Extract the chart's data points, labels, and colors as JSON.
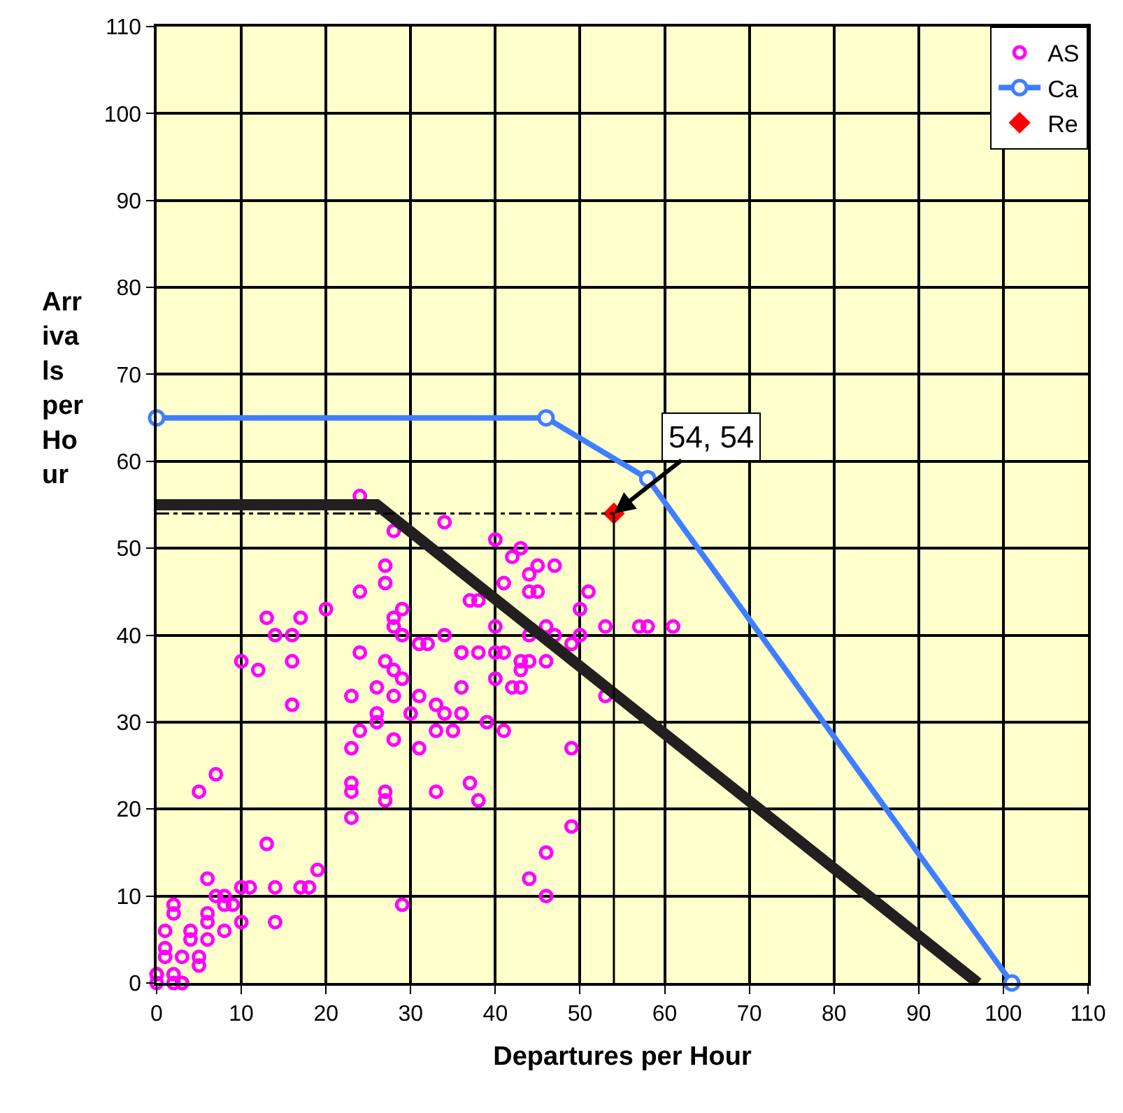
{
  "chart_data": {
    "type": "scatter",
    "xlabel": "Departures per Hour",
    "ylabel": "Arr\niva\nls\nper\nHo\nur",
    "xlim": [
      0,
      110
    ],
    "xticks": [
      0,
      10,
      20,
      30,
      40,
      50,
      60,
      70,
      80,
      90,
      100,
      110
    ],
    "ylim": [
      0,
      110
    ],
    "yticks": [
      0,
      10,
      20,
      30,
      40,
      50,
      60,
      70,
      80,
      90,
      100,
      110
    ],
    "grid": true,
    "legend": "top right",
    "series": [
      {
        "name": "AS",
        "marker": "circle",
        "color": "#ff00ff",
        "x": [
          0,
          0,
          0,
          1,
          1,
          1,
          2,
          2,
          2,
          3,
          3,
          4,
          4,
          5,
          5,
          6,
          6,
          6,
          7,
          8,
          8,
          8,
          9,
          10,
          10,
          11,
          14,
          14,
          17,
          18,
          19,
          13,
          6,
          5,
          7,
          23,
          27,
          27,
          23,
          29,
          24,
          34,
          28,
          27,
          27,
          24,
          20,
          13,
          17,
          14,
          16,
          28,
          29,
          28,
          29,
          31,
          32,
          34,
          36,
          10,
          12,
          16,
          24,
          27,
          28,
          29,
          26,
          23,
          28,
          31,
          16,
          36,
          26,
          30,
          33,
          34,
          36,
          24,
          26,
          33,
          35,
          23,
          28,
          31,
          23,
          33,
          37,
          40,
          43,
          42,
          45,
          47,
          44,
          41,
          44,
          45,
          51,
          37,
          38,
          50,
          40,
          46,
          47,
          53,
          57,
          58,
          61,
          44,
          50,
          49,
          36,
          38,
          40,
          41,
          43,
          44,
          43,
          46,
          40,
          42,
          43,
          53,
          39,
          41,
          49,
          38,
          49,
          46,
          44,
          46,
          2,
          3
        ],
        "values": [
          0,
          1,
          1,
          4,
          6,
          3,
          1,
          9,
          8,
          3,
          0,
          6,
          5,
          3,
          2,
          8,
          7,
          5,
          10,
          10,
          9,
          6,
          9,
          7,
          11,
          11,
          11,
          7,
          11,
          11,
          13,
          16,
          12,
          22,
          24,
          22,
          22,
          21,
          19,
          9,
          56,
          53,
          52,
          48,
          46,
          45,
          43,
          42,
          42,
          40,
          40,
          42,
          43,
          41,
          40,
          39,
          39,
          40,
          38,
          37,
          36,
          37,
          38,
          37,
          36,
          35,
          34,
          33,
          33,
          33,
          32,
          34,
          31,
          31,
          32,
          31,
          31,
          29,
          30,
          29,
          29,
          27,
          28,
          27,
          23,
          22,
          23,
          51,
          50,
          49,
          48,
          48,
          47,
          46,
          45,
          45,
          45,
          44,
          44,
          43,
          41,
          41,
          40,
          41,
          41,
          41,
          41,
          40,
          40,
          39,
          38,
          38,
          38,
          38,
          37,
          37,
          36,
          37,
          35,
          34,
          34,
          33,
          30,
          29,
          27,
          21,
          18,
          15,
          12,
          10,
          0,
          0
        ]
      },
      {
        "name": "Ca",
        "type": "line",
        "marker": "circle",
        "color": "#3f7fff",
        "x": [
          0,
          46,
          58,
          101
        ],
        "values": [
          65,
          65,
          58,
          0
        ]
      },
      {
        "name": "Re",
        "type": "scatter",
        "marker": "diamond",
        "color": "#ff0000",
        "x": [
          54
        ],
        "values": [
          54
        ]
      },
      {
        "type": "line",
        "marker": "none",
        "color": "#231f20",
        "x": [
          0,
          26,
          97
        ],
        "values": [
          55,
          55,
          0
        ]
      },
      {
        "type": "line",
        "marker": "none",
        "line_style": "dashed",
        "color": "#000000",
        "x": [
          0,
          54
        ],
        "values": [
          54,
          54
        ]
      },
      {
        "type": "line",
        "marker": "none",
        "line_style": "solid",
        "color": "#000000",
        "x": [
          54,
          54
        ],
        "values": [
          54,
          0
        ]
      }
    ],
    "annotations": [
      {
        "text": "54, 54",
        "x": 54,
        "y": 54
      }
    ]
  }
}
